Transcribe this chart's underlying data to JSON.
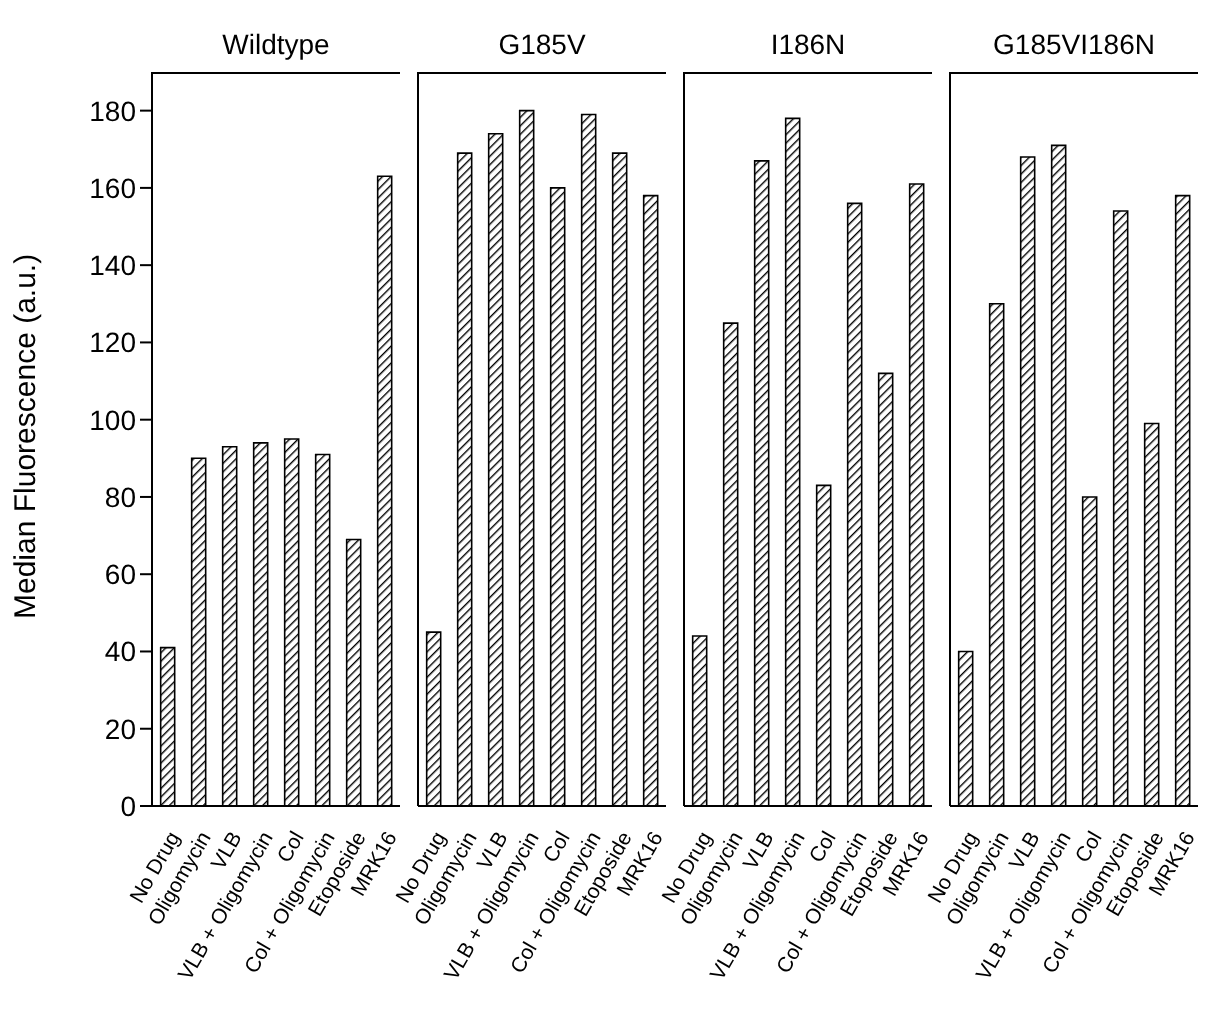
{
  "chart_data": [
    {
      "type": "bar",
      "title": "Wildtype",
      "ylabel": "Median Fluorescence (a.u.)",
      "categories": [
        "No Drug",
        "Oligomycin",
        "VLB",
        "VLB + Oligomycin",
        "Col",
        "Col + Oligomycin",
        "Etoposide",
        "MRK16"
      ],
      "values": [
        41,
        90,
        93,
        94,
        95,
        91,
        69,
        163
      ],
      "color": "#000000",
      "ylim": [
        0,
        190
      ],
      "yticks": [
        0,
        20,
        40,
        60,
        80,
        100,
        120,
        140,
        160,
        180
      ],
      "grid": false
    },
    {
      "type": "bar",
      "title": "G185V",
      "categories": [
        "No Drug",
        "Oligomycin",
        "VLB",
        "VLB + Oligomycin",
        "Col",
        "Col + Oligomycin",
        "Etoposide",
        "MRK16"
      ],
      "values": [
        45,
        169,
        174,
        180,
        160,
        179,
        169,
        158
      ],
      "color": "#000000",
      "ylim": [
        0,
        190
      ],
      "yticks": [
        0,
        20,
        40,
        60,
        80,
        100,
        120,
        140,
        160,
        180
      ],
      "grid": false,
      "tick_labels": "x"
    },
    {
      "type": "bar",
      "title": "I186N",
      "categories": [
        "No Drug",
        "Oligomycin",
        "VLB",
        "VLB + Oligomycin",
        "Col",
        "Col + Oligomycin",
        "Etoposide",
        "MRK16"
      ],
      "values": [
        44,
        125,
        167,
        178,
        83,
        156,
        112,
        161
      ],
      "color": "#000000",
      "ylim": [
        0,
        190
      ],
      "yticks": [
        0,
        20,
        40,
        60,
        80,
        100,
        120,
        140,
        160,
        180
      ],
      "grid": false,
      "tick_labels": "x"
    },
    {
      "type": "bar",
      "title": "G185VI186N",
      "categories": [
        "No Drug",
        "Oligomycin",
        "VLB",
        "VLB + Oligomycin",
        "Col",
        "Col + Oligomycin",
        "Etoposide",
        "MRK16"
      ],
      "values": [
        40,
        130,
        168,
        171,
        80,
        154,
        99,
        158
      ],
      "color": "#000000",
      "ylim": [
        0,
        190
      ],
      "yticks": [
        0,
        20,
        40,
        60,
        80,
        100,
        120,
        140,
        160,
        180
      ],
      "grid": false,
      "tick_labels": "x"
    }
  ]
}
